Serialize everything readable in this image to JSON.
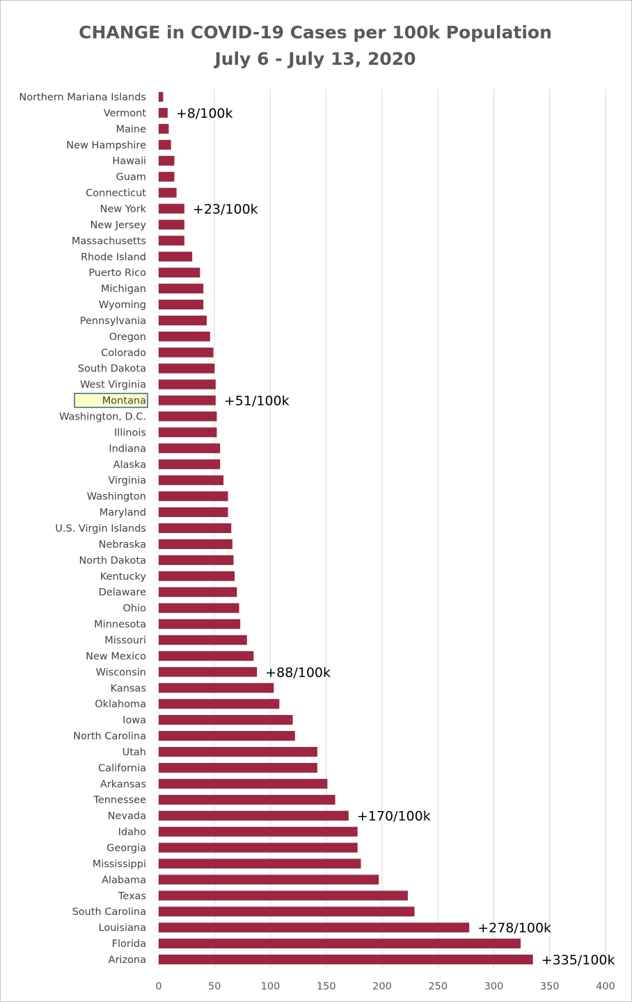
{
  "colors": {
    "bar": "#9b2743",
    "gridline": "#d9d9d9",
    "highlight_fill": "#ffffcc",
    "highlight_border": "#3a5f7d",
    "highlight_text": "#8a7a1a"
  },
  "chart_data": {
    "type": "bar",
    "orientation": "horizontal",
    "title": "CHANGE in COVID-19 Cases per 100k Population",
    "subtitle": "July 6 - July 13, 2020",
    "xlabel": "",
    "ylabel": "",
    "xlim": [
      0,
      400
    ],
    "xticks": [
      0,
      50,
      100,
      150,
      200,
      250,
      300,
      350,
      400
    ],
    "grid": "vertical",
    "legend": "none",
    "highlighted_category": "Montana",
    "categories": [
      "Northern Mariana Islands",
      "Vermont",
      "Maine",
      "New Hampshire",
      "Hawaii",
      "Guam",
      "Connecticut",
      "New York",
      "New Jersey",
      "Massachusetts",
      "Rhode Island",
      "Puerto Rico",
      "Michigan",
      "Wyoming",
      "Pennsylvania",
      "Oregon",
      "Colorado",
      "South Dakota",
      "West Virginia",
      "Montana",
      "Washington, D.C.",
      "Illinois",
      "Indiana",
      "Alaska",
      "Virginia",
      "Washington",
      "Maryland",
      "U.S. Virgin Islands",
      "Nebraska",
      "North Dakota",
      "Kentucky",
      "Delaware",
      "Ohio",
      "Minnesota",
      "Missouri",
      "New Mexico",
      "Wisconsin",
      "Kansas",
      "Oklahoma",
      "Iowa",
      "North Carolina",
      "Utah",
      "California",
      "Arkansas",
      "Tennessee",
      "Nevada",
      "Idaho",
      "Georgia",
      "Mississippi",
      "Alabama",
      "Texas",
      "South Carolina",
      "Louisiana",
      "Florida",
      "Arizona"
    ],
    "values": [
      4,
      8,
      9,
      11,
      14,
      14,
      16,
      23,
      23,
      23,
      30,
      37,
      40,
      40,
      43,
      46,
      49,
      50,
      51,
      51,
      52,
      52,
      55,
      55,
      58,
      62,
      62,
      65,
      66,
      67,
      68,
      70,
      72,
      73,
      79,
      85,
      88,
      103,
      108,
      120,
      122,
      142,
      142,
      151,
      158,
      170,
      178,
      178,
      181,
      197,
      223,
      229,
      278,
      324,
      335
    ],
    "annotations": [
      {
        "category": "Vermont",
        "text": "+8/100k"
      },
      {
        "category": "New York",
        "text": "+23/100k"
      },
      {
        "category": "Montana",
        "text": "+51/100k"
      },
      {
        "category": "Wisconsin",
        "text": "+88/100k"
      },
      {
        "category": "Nevada",
        "text": "+170/100k"
      },
      {
        "category": "Louisiana",
        "text": "+278/100k"
      },
      {
        "category": "Arizona",
        "text": "+335/100k"
      }
    ]
  }
}
